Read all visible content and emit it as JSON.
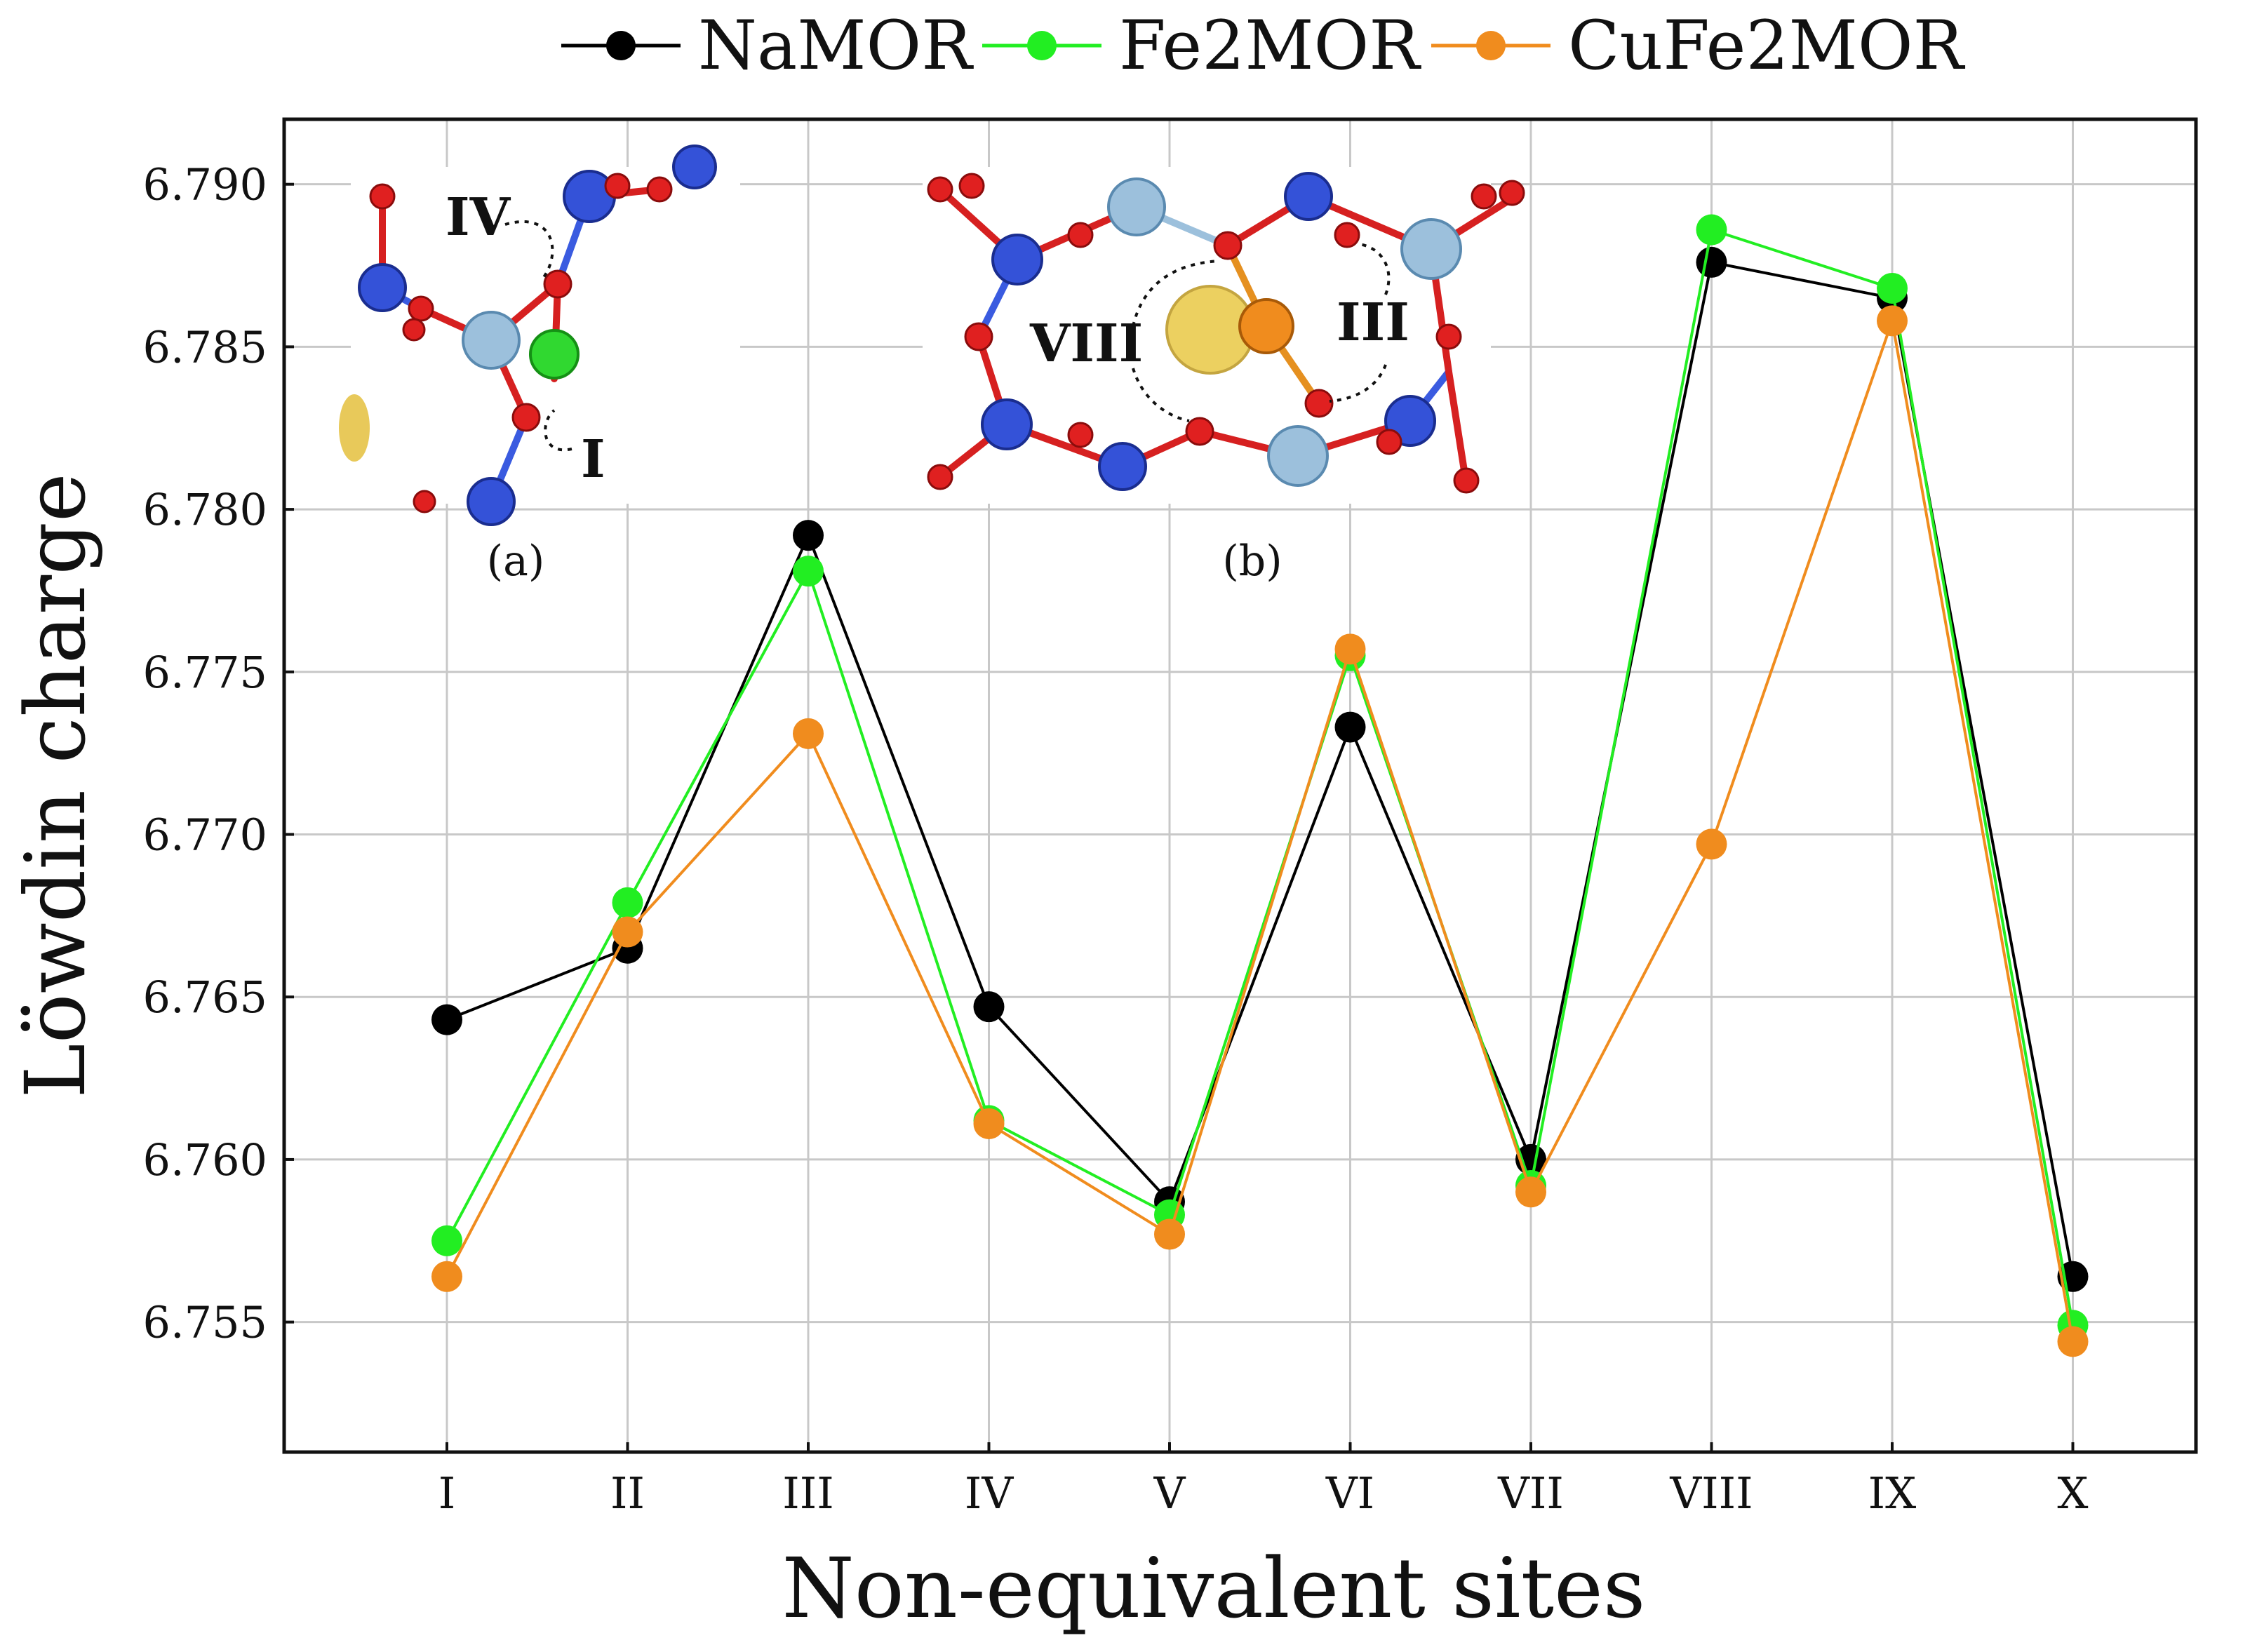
{
  "chart_data": {
    "type": "line",
    "title": "",
    "xlabel": "Non-equivalent sites",
    "ylabel": "Löwdin charge",
    "categories": [
      "I",
      "II",
      "III",
      "IV",
      "V",
      "VI",
      "VII",
      "VIII",
      "IX",
      "X"
    ],
    "ylim": [
      6.751,
      6.792
    ],
    "yticks": [
      "6.755",
      "6.760",
      "6.765",
      "6.770",
      "6.775",
      "6.780",
      "6.785",
      "6.790"
    ],
    "grid": true,
    "legend_position": "top",
    "series": [
      {
        "name": "NaMOR",
        "color": "#000000",
        "values": [
          6.7643,
          6.7665,
          6.7792,
          6.7647,
          6.7587,
          6.7733,
          6.76,
          6.7876,
          6.7865,
          6.7564
        ]
      },
      {
        "name": "Fe2MOR",
        "color": "#22ee22",
        "values": [
          6.7575,
          6.7679,
          6.7781,
          6.7612,
          6.7583,
          6.7755,
          6.7592,
          6.7886,
          6.7868,
          6.7549
        ]
      },
      {
        "name": "CuFe2MOR",
        "color": "#f08c1e",
        "values": [
          6.7564,
          6.767,
          6.7731,
          6.7611,
          6.7577,
          6.7757,
          6.759,
          6.7697,
          6.7858,
          6.7544
        ]
      }
    ]
  },
  "insets": {
    "a": {
      "caption": "(a)",
      "labels": [
        "IV",
        "I"
      ]
    },
    "b": {
      "caption": "(b)",
      "labels": [
        "VIII",
        "III"
      ]
    }
  }
}
